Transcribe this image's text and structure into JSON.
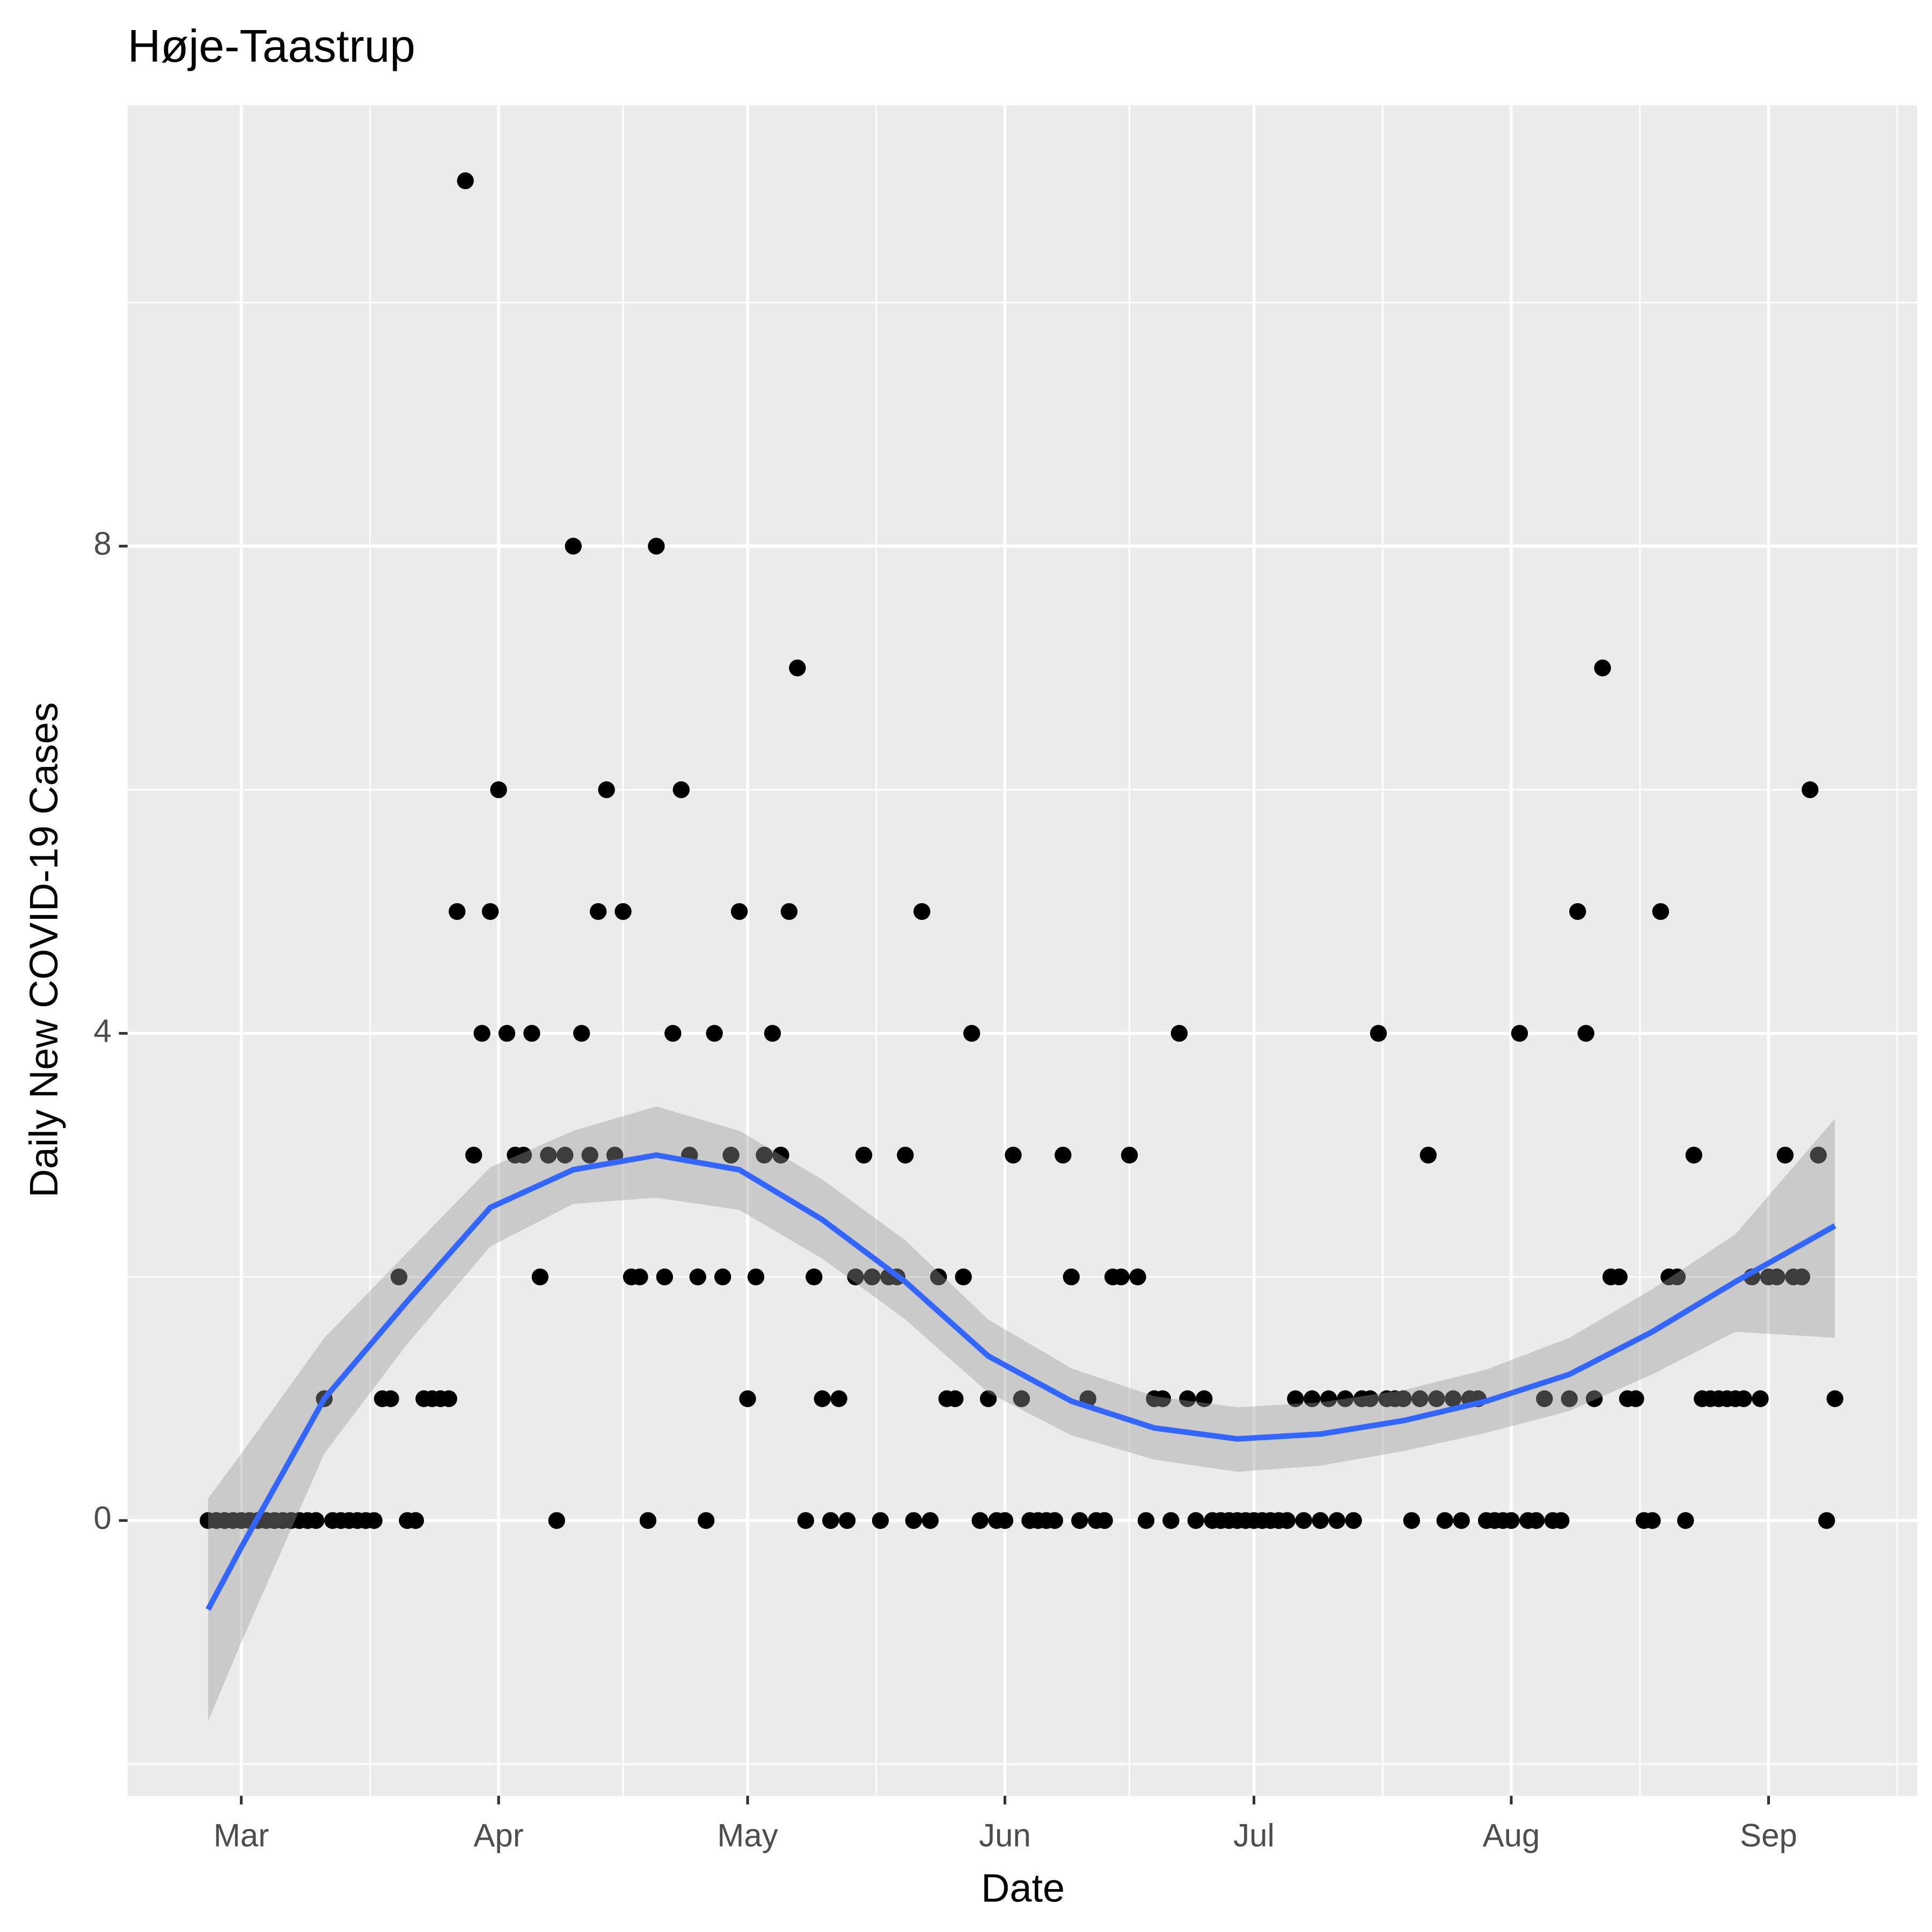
{
  "chart_data": {
    "type": "scatter",
    "title": "Høje-Taastrup",
    "x_label": "Date",
    "y_label": "Daily New COVID-19 Cases",
    "color": "#000000",
    "grid": true,
    "x": [
      -4,
      -3,
      -2,
      -1,
      0,
      1,
      2,
      3,
      4,
      5,
      6,
      7,
      8,
      9,
      10,
      11,
      12,
      13,
      14,
      15,
      16,
      17,
      18,
      19,
      20,
      21,
      22,
      23,
      24,
      25,
      26,
      27,
      28,
      29,
      30,
      31,
      32,
      33,
      34,
      35,
      36,
      37,
      38,
      39,
      40,
      41,
      42,
      43,
      44,
      45,
      46,
      47,
      48,
      49,
      50,
      51,
      52,
      53,
      54,
      55,
      56,
      57,
      58,
      59,
      60,
      61,
      62,
      63,
      64,
      65,
      66,
      67,
      68,
      69,
      70,
      71,
      72,
      73,
      74,
      75,
      76,
      77,
      78,
      79,
      80,
      81,
      82,
      83,
      84,
      85,
      86,
      87,
      88,
      89,
      90,
      91,
      92,
      93,
      94,
      95,
      96,
      97,
      98,
      99,
      100,
      101,
      102,
      103,
      104,
      105,
      106,
      107,
      108,
      109,
      110,
      111,
      112,
      113,
      114,
      115,
      116,
      117,
      118,
      119,
      120,
      121,
      122,
      123,
      124,
      125,
      126,
      127,
      128,
      129,
      130,
      131,
      132,
      133,
      134,
      135,
      136,
      137,
      138,
      139,
      140,
      141,
      142,
      143,
      144,
      145,
      146,
      147,
      148,
      149,
      150,
      151,
      152,
      153,
      154,
      155,
      156,
      157,
      158,
      159,
      160,
      161,
      162,
      163,
      164,
      165,
      166,
      167,
      168,
      169,
      170,
      171,
      172,
      173,
      174,
      175,
      176,
      177,
      178,
      179,
      180,
      181,
      182,
      183,
      184,
      185,
      186,
      187,
      188,
      189,
      190,
      191,
      192
    ],
    "values": [
      0,
      0,
      0,
      0,
      0,
      0,
      0,
      0,
      0,
      0,
      0,
      0,
      0,
      0,
      1,
      0,
      0,
      0,
      0,
      0,
      0,
      1,
      1,
      2,
      0,
      0,
      1,
      1,
      1,
      1,
      5,
      11,
      3,
      4,
      5,
      6,
      4,
      3,
      3,
      4,
      2,
      3,
      0,
      3,
      8,
      4,
      3,
      5,
      6,
      3,
      5,
      2,
      2,
      0,
      8,
      2,
      4,
      6,
      3,
      2,
      0,
      4,
      2,
      3,
      5,
      1,
      2,
      3,
      4,
      3,
      5,
      7,
      0,
      2,
      1,
      0,
      1,
      0,
      2,
      3,
      2,
      0,
      2,
      2,
      3,
      0,
      5,
      0,
      2,
      1,
      1,
      2,
      4,
      0,
      1,
      0,
      0,
      3,
      1,
      0,
      0,
      0,
      0,
      3,
      2,
      0,
      1,
      0,
      0,
      2,
      2,
      3,
      2,
      0,
      1,
      1,
      0,
      4,
      1,
      0,
      1,
      0,
      0,
      0,
      0,
      0,
      0,
      0,
      0,
      0,
      0,
      1,
      0,
      1,
      0,
      1,
      0,
      1,
      0,
      1,
      1,
      4,
      1,
      1,
      1,
      0,
      1,
      3,
      1,
      0,
      1,
      0,
      1,
      1,
      0,
      0,
      0,
      0,
      4,
      0,
      0,
      1,
      0,
      0,
      1,
      5,
      4,
      1,
      7,
      2,
      2,
      1,
      1,
      0,
      0,
      5,
      2,
      2,
      0,
      3,
      1,
      1,
      1,
      1,
      1,
      1,
      2,
      1,
      2,
      2,
      3,
      2,
      2,
      6,
      3,
      0,
      1
    ],
    "smooth": {
      "color": "#3366ff",
      "band_color": "#999999",
      "x": [
        -4,
        0,
        10,
        20,
        30,
        40,
        50,
        60,
        70,
        80,
        90,
        100,
        110,
        120,
        130,
        140,
        150,
        160,
        170,
        180,
        192
      ],
      "values": [
        -0.73,
        -0.22,
        1.0,
        1.8,
        2.57,
        2.88,
        3.0,
        2.88,
        2.47,
        1.96,
        1.35,
        0.98,
        0.76,
        0.67,
        0.71,
        0.82,
        0.98,
        1.2,
        1.55,
        1.96,
        2.42
      ],
      "lower": [
        -1.65,
        -1.0,
        0.55,
        1.45,
        2.25,
        2.6,
        2.65,
        2.55,
        2.15,
        1.65,
        1.05,
        0.7,
        0.5,
        0.4,
        0.45,
        0.57,
        0.72,
        0.9,
        1.2,
        1.55,
        1.5
      ],
      "upper": [
        0.18,
        0.55,
        1.5,
        2.2,
        2.9,
        3.2,
        3.4,
        3.2,
        2.8,
        2.3,
        1.65,
        1.25,
        1.02,
        0.93,
        0.97,
        1.07,
        1.24,
        1.5,
        1.9,
        2.35,
        3.3
      ]
    },
    "xlim": [
      -13.7,
      201.9
    ],
    "ylim": [
      -2.26,
      11.62
    ],
    "xticks": [
      {
        "value": 0,
        "label": "Mar"
      },
      {
        "value": 31,
        "label": "Apr"
      },
      {
        "value": 61,
        "label": "May"
      },
      {
        "value": 92,
        "label": "Jun"
      },
      {
        "value": 122,
        "label": "Jul"
      },
      {
        "value": 153,
        "label": "Aug"
      },
      {
        "value": 184,
        "label": "Sep"
      }
    ],
    "yticks": [
      0,
      4,
      8
    ]
  }
}
